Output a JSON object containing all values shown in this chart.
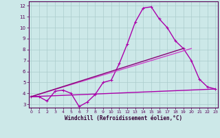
{
  "xlabel": "Windchill (Refroidissement éolien,°C)",
  "background_color": "#cce8e8",
  "grid_color": "#aacccc",
  "x_ticks": [
    0,
    1,
    2,
    3,
    4,
    5,
    6,
    7,
    8,
    9,
    10,
    11,
    12,
    13,
    14,
    15,
    16,
    17,
    18,
    19,
    20,
    21,
    22,
    23
  ],
  "y_ticks": [
    3,
    4,
    5,
    6,
    7,
    8,
    9,
    10,
    11,
    12
  ],
  "xlim": [
    -0.3,
    23.3
  ],
  "ylim": [
    2.7,
    12.4
  ],
  "series": [
    {
      "x": [
        0,
        1,
        2,
        3,
        4,
        5,
        6,
        7,
        8,
        9,
        10,
        11,
        12,
        13,
        14,
        15,
        16,
        17,
        18,
        19,
        20,
        21,
        22,
        23
      ],
      "y": [
        3.7,
        3.7,
        3.3,
        4.2,
        4.3,
        4.0,
        2.8,
        3.2,
        3.9,
        5.0,
        5.2,
        6.7,
        8.5,
        10.5,
        11.8,
        11.9,
        10.8,
        10.0,
        8.8,
        8.1,
        7.0,
        5.3,
        4.6,
        4.4
      ],
      "color": "#aa00aa",
      "lw": 1.0,
      "marker": "+"
    },
    {
      "x": [
        0,
        23
      ],
      "y": [
        3.7,
        4.4
      ],
      "color": "#aa00aa",
      "lw": 1.0,
      "marker": null
    },
    {
      "x": [
        0,
        20
      ],
      "y": [
        3.7,
        8.1
      ],
      "color": "#cc44cc",
      "lw": 1.0,
      "marker": null
    },
    {
      "x": [
        0,
        19
      ],
      "y": [
        3.7,
        8.1
      ],
      "color": "#880077",
      "lw": 1.0,
      "marker": null
    }
  ]
}
